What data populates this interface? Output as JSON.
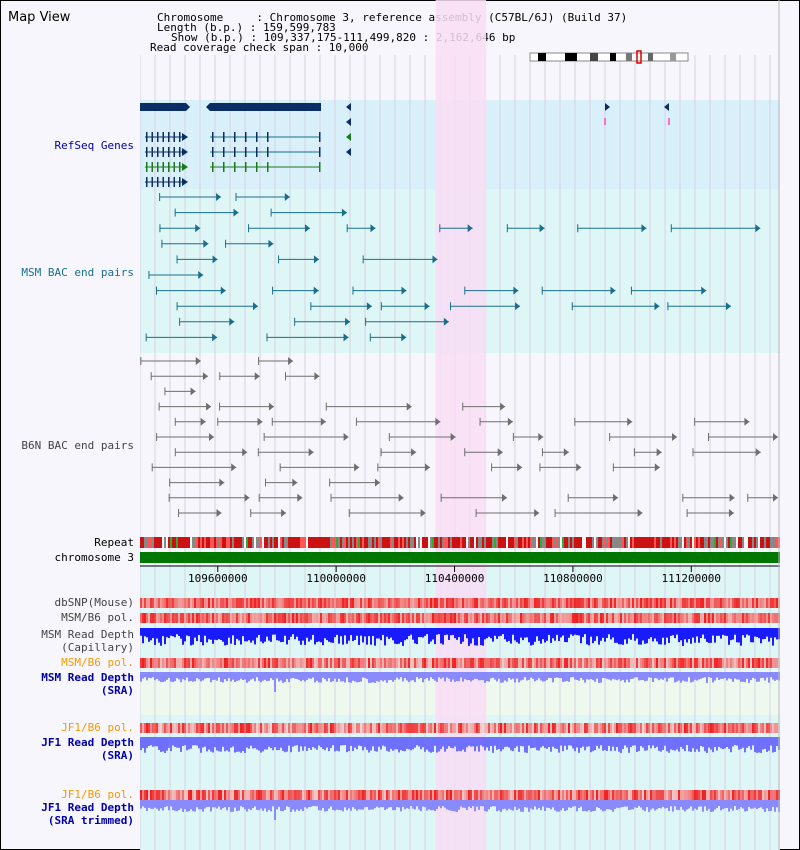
{
  "app": {
    "title": "Map View"
  },
  "info": {
    "chromosome": "Chromosome     : Chromosome 3, reference assembly (C57BL/6J) (Build 37)",
    "length": "Length (b.p.) : 159,599,783",
    "show": "Show (b.p.) : 109,337,175-111,499,820 : 2,162,646 bp",
    "coverage": "Read coverage check span : 10,000"
  },
  "tracks": {
    "refseq": "RefSeq Genes",
    "msm_bac": "MSM BAC end pairs",
    "b6n_bac": "B6N BAC end pairs",
    "repeat": "Repeat",
    "chromosome": "chromosome 3",
    "dbsnp": "dbSNP(Mouse)",
    "msm_b6_pol_1": "MSM/B6 pol.",
    "msm_depth_cap_1": "MSM Read Depth",
    "msm_depth_cap_2": "(Capillary)",
    "msm_b6_pol_2": "MSM/B6 pol.",
    "msm_depth_sra_1": "MSM Read Depth",
    "msm_depth_sra_2": "(SRA)",
    "jf1_b6_pol_1": "JF1/B6 pol.",
    "jf1_depth_sra_1": "JF1 Read Depth",
    "jf1_depth_sra_2": "(SRA)",
    "jf1_b6_pol_2": "JF1/B6 pol.",
    "jf1_depth_trim_1": "JF1 Read Depth",
    "jf1_depth_trim_2": "(SRA trimmed)"
  },
  "axis": {
    "ticks": [
      109600000,
      110000000,
      110400000,
      110800000,
      111200000
    ],
    "tick_labels": [
      "109600000",
      "110000000",
      "110400000",
      "110800000",
      "111200000"
    ],
    "range": [
      109337175,
      111499820
    ]
  },
  "highlight": {
    "start": 110336000,
    "end": 110507000,
    "color": "#f9ddf5"
  },
  "colors": {
    "refseq_bg": "#d9effa",
    "msm_bg": "#def6f6",
    "b6n_bg": "#f6f6fc",
    "msm_bac": "#1a6e8c",
    "b6n_bac": "#6e6e6e",
    "refseq": "#0a2d63",
    "chromosome": "#007700",
    "msm_label": "#1a6e8c",
    "refseq_label": "#0000aa",
    "pol_label": "#f59a00",
    "depth_label": "#0000aa",
    "gray_label": "#444444"
  }
}
